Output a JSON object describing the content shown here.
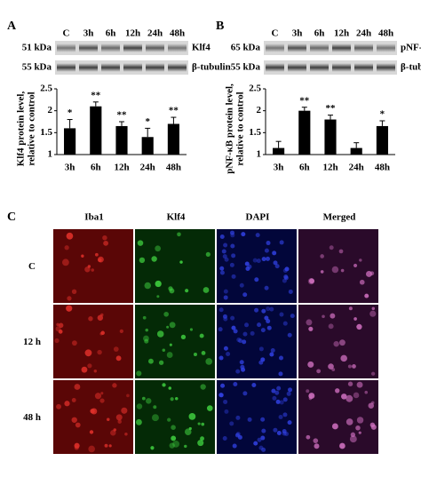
{
  "panel_labels": [
    "A",
    "B",
    "C"
  ],
  "blots": [
    {
      "lanes": [
        "C",
        "3h",
        "6h",
        "12h",
        "24h",
        "48h"
      ],
      "rows": [
        {
          "kda": "51 kDa",
          "name": "Klf4"
        },
        {
          "kda": "55 kDa",
          "name": "β-tubulin"
        }
      ]
    },
    {
      "lanes": [
        "C",
        "3h",
        "6h",
        "12h",
        "24h",
        "48h"
      ],
      "rows": [
        {
          "kda": "65 kDa",
          "name": "pNF-κB"
        },
        {
          "kda": "55 kDa",
          "name": "β-tubulin"
        }
      ]
    }
  ],
  "chart_data": [
    {
      "type": "bar",
      "ylabel": [
        "Klf4 protein level,",
        "relative to control"
      ],
      "categories": [
        "3h",
        "6h",
        "12h",
        "24h",
        "48h"
      ],
      "values": [
        1.6,
        2.1,
        1.65,
        1.4,
        1.7
      ],
      "errors": [
        0.2,
        0.1,
        0.1,
        0.2,
        0.15
      ],
      "value_labels": [
        "*",
        "**",
        "**",
        "*",
        "**"
      ],
      "color": "#000000",
      "ylim": [
        1,
        2.5
      ],
      "yticks": [
        1,
        1.5,
        2,
        2.5
      ]
    },
    {
      "type": "bar",
      "ylabel": [
        "pNF-κB protein level,",
        "relative to control"
      ],
      "categories": [
        "3h",
        "6h",
        "12h",
        "24h",
        "48h"
      ],
      "values": [
        1.15,
        2.0,
        1.8,
        1.15,
        1.65
      ],
      "errors": [
        0.15,
        0.08,
        0.1,
        0.12,
        0.12
      ],
      "value_labels": [
        null,
        "**",
        "**",
        null,
        "*"
      ],
      "color": "#000000",
      "ylim": [
        1,
        2.5
      ],
      "yticks": [
        1,
        1.5,
        2,
        2.5
      ]
    }
  ],
  "microscopy": {
    "columns": [
      "Iba1",
      "Klf4",
      "DAPI",
      "Merged"
    ],
    "rows": [
      "C",
      "12 h",
      "48 h"
    ]
  }
}
